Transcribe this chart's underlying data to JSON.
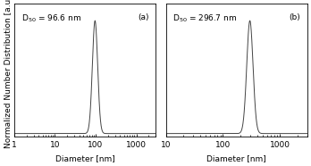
{
  "panel_a": {
    "label": "(a)",
    "d50_text": "D$_{50}$ = 96.6 nm",
    "mean_log": 1.985,
    "sigma_log": 0.065,
    "xlim": [
      1,
      3000
    ],
    "xticks": [
      1,
      10,
      100,
      1000
    ],
    "xticklabels": [
      "1",
      "10",
      "100",
      "1000"
    ]
  },
  "panel_b": {
    "label": "(b)",
    "d50_text": "D$_{50}$ = 296.7 nm",
    "mean_log": 2.472,
    "sigma_log": 0.055,
    "xlim": [
      10,
      3000
    ],
    "xticks": [
      10,
      100,
      1000
    ],
    "xticklabels": [
      "10",
      "100",
      "1000"
    ]
  },
  "ylabel": "Normalized Number Distribution [a.u.]",
  "xlabel": "Diameter [nm]",
  "line_color": "#444444",
  "bg_color": "#ffffff",
  "font_size": 6.5,
  "annotation_fontsize": 6.5
}
